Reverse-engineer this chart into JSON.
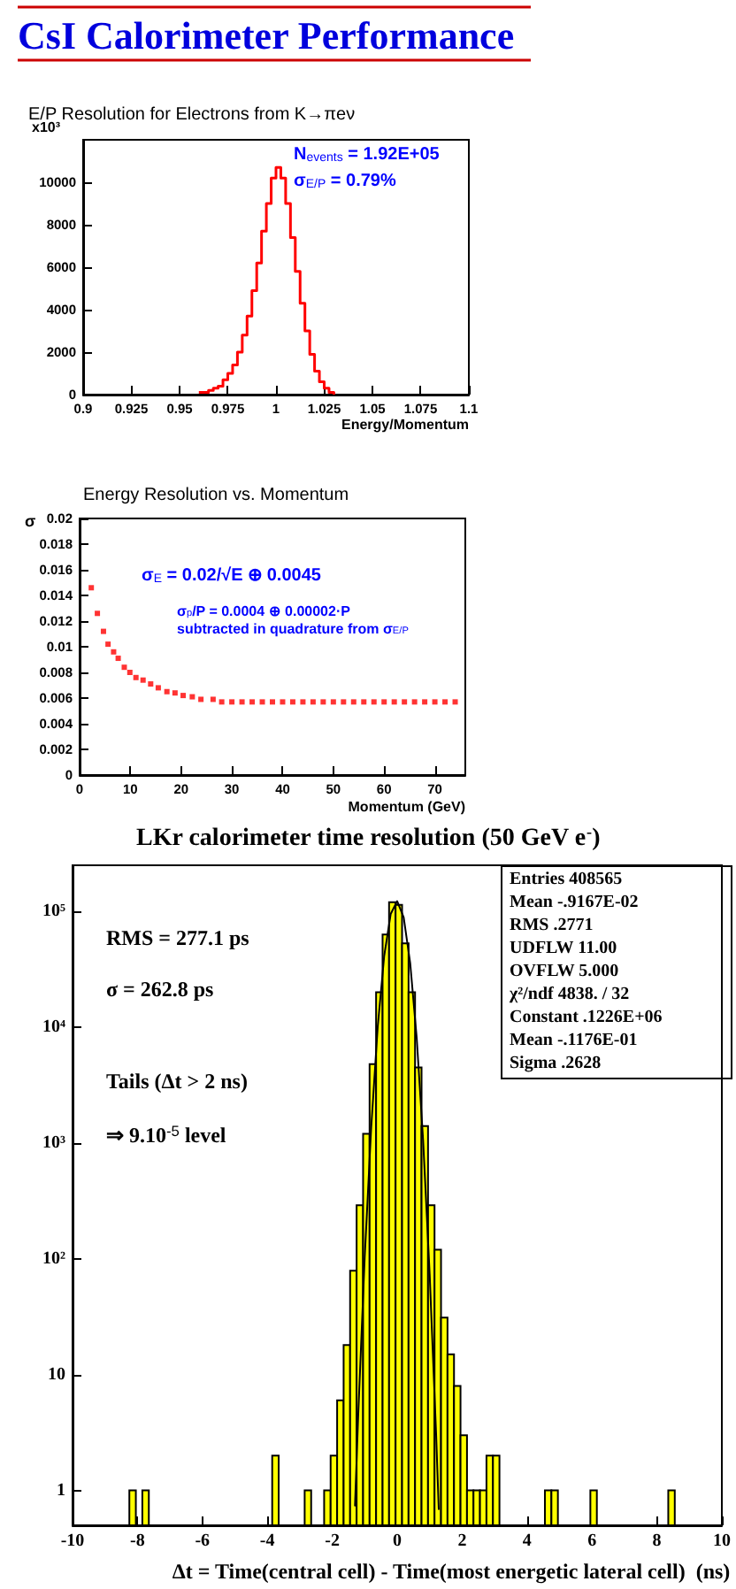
{
  "chart_data": [
    {
      "type": "step",
      "title": "CsI Calorimeter Performance",
      "subtitle": "E/P Resolution for Electrons from K→πeν",
      "xlabel": "Energy/Momentum",
      "annotations": [
        "x10³",
        "N$_{events}$ = 1.92E+05",
        "σ$_{E/P}$ = 0.79%"
      ],
      "x": [
        0.96,
        0.9625,
        0.965,
        0.9675,
        0.97,
        0.9725,
        0.975,
        0.9775,
        0.98,
        0.9825,
        0.985,
        0.9875,
        0.99,
        0.9925,
        0.995,
        0.9975,
        1.0,
        1.0025,
        1.005,
        1.0075,
        1.01,
        1.0125,
        1.015,
        1.0175,
        1.02,
        1.0225,
        1.025,
        1.0275,
        1.03
      ],
      "values": [
        100,
        100,
        200,
        300,
        400,
        700,
        1000,
        1400,
        2000,
        2800,
        3700,
        4900,
        6200,
        7700,
        9000,
        10200,
        10700,
        10200,
        9000,
        7400,
        5800,
        4300,
        3000,
        1900,
        1100,
        600,
        300,
        100,
        0
      ],
      "color": "#ff0000",
      "xlim": [
        0.9,
        1.1
      ],
      "ylim": [
        0,
        12000
      ],
      "xticks": [
        0.9,
        0.925,
        0.95,
        0.975,
        1,
        1.025,
        1.05,
        1.075,
        1.1
      ],
      "yticks": [
        0,
        2000,
        4000,
        6000,
        8000,
        10000
      ],
      "grid": false
    },
    {
      "type": "scatter",
      "title": "Energy Resolution vs. Momentum",
      "xlabel": "Momentum (GeV)",
      "ylabel": "σ",
      "annotations": [
        "σ$_{E}$ = 0.02/√E ⊕ 0.0045",
        "σ$_{p}$/P = 0.0004 ⊕ 0.00002·P",
        "subtracted in quadrature from σ$_{E/P}$"
      ],
      "x": [
        2.3,
        3.5,
        4.7,
        5.6,
        6.7,
        7.6,
        8.8,
        9.9,
        11.1,
        12.5,
        14,
        15.5,
        17.2,
        18.8,
        20.4,
        22.2,
        23.9,
        26.3,
        28,
        30,
        32,
        34,
        36,
        38,
        40,
        42,
        44,
        46,
        48,
        50,
        52,
        54,
        56,
        58,
        60,
        62,
        64,
        66,
        68,
        70,
        72,
        74
      ],
      "values": [
        0.0146,
        0.0126,
        0.0112,
        0.0102,
        0.0096,
        0.0091,
        0.0084,
        0.008,
        0.0076,
        0.0074,
        0.0071,
        0.0068,
        0.0065,
        0.0064,
        0.0062,
        0.0061,
        0.0059,
        0.0059,
        0.0057,
        0.0057,
        0.0057,
        0.0057,
        0.0057,
        0.0057,
        0.0057,
        0.0057,
        0.0057,
        0.0057,
        0.0057,
        0.0057,
        0.0057,
        0.0057,
        0.0057,
        0.0057,
        0.0057,
        0.0057,
        0.0057,
        0.0057,
        0.0057,
        0.0057,
        0.0057,
        0.0057
      ],
      "color": "#ff0000",
      "marker": "square",
      "xlim": [
        0,
        76
      ],
      "ylim": [
        0,
        0.02
      ],
      "xticks": [
        0,
        10,
        20,
        30,
        40,
        50,
        60,
        70
      ],
      "yticks": [
        0,
        0.002,
        0.004,
        0.006,
        0.008,
        0.01,
        0.012,
        0.014,
        0.016,
        0.018,
        0.02
      ],
      "grid": false
    },
    {
      "type": "histogram",
      "title": "LKr calorimeter time resolution (50 GeV e$^{-}$)",
      "xlabel": "Δt = Time(central cell) - Time(most energetic lateral cell)  (ns)",
      "annotations": [
        "RMS = 277.1 ps",
        "σ = 262.8 ps",
        "Tails (Δt > 2 ns)",
        "⇒ 9.10$^{-5}$ level",
        "Entries 408565",
        "Mean -.9167E-02",
        "RMS .2771",
        "UDFLW 11.00",
        "OVFLW 5.000",
        "χ²/ndf 4838. / 32",
        "Constant .1226E+06",
        "Mean -.1176E-01",
        "Sigma .2628"
      ],
      "bins": [
        -8.25,
        -8.05,
        -7.85,
        -7.65,
        -7.45,
        -7.25,
        -7.05,
        -6.85,
        -6.65,
        -6.45,
        -6.25,
        -6.05,
        -5.85,
        -5.65,
        -5.45,
        -5.25,
        -5.05,
        -4.85,
        -4.65,
        -4.45,
        -4.25,
        -4.05,
        -3.85,
        -3.65,
        -3.45,
        -3.25,
        -3.05,
        -2.85,
        -2.65,
        -2.45,
        -2.25,
        -2.05,
        -1.85,
        -1.65,
        -1.45,
        -1.25,
        -1.05,
        -0.85,
        -0.65,
        -0.45,
        -0.25,
        -0.05,
        0.15,
        0.35,
        0.55,
        0.75,
        0.95,
        1.15,
        1.35,
        1.55,
        1.75,
        1.95,
        2.15,
        2.35,
        2.55,
        2.75,
        2.95,
        3.15,
        3.35,
        3.55,
        3.75,
        3.95,
        4.15,
        4.35,
        4.55,
        4.75,
        4.95,
        5.15,
        5.35,
        5.55,
        5.75,
        5.95,
        6.15,
        6.35,
        6.55,
        6.75,
        6.95,
        7.15,
        7.35,
        7.55,
        7.75,
        7.95,
        8.15,
        8.35,
        8.55
      ],
      "series": [
        {
          "color": "#ffff00",
          "values": [
            1,
            null,
            1,
            null,
            null,
            null,
            null,
            null,
            null,
            null,
            null,
            null,
            null,
            null,
            null,
            null,
            null,
            null,
            null,
            null,
            null,
            null,
            2,
            null,
            null,
            null,
            null,
            1,
            null,
            null,
            1,
            2,
            6,
            18,
            79,
            290,
            1200,
            4800,
            20000,
            63000,
            120000,
            114000,
            53000,
            20000,
            4500,
            1400,
            290,
            120,
            31,
            15,
            8,
            3,
            1,
            1,
            1,
            2,
            2,
            null,
            null,
            null,
            null,
            null,
            null,
            null,
            1,
            1,
            null,
            null,
            null,
            null,
            null,
            1,
            null,
            null,
            null,
            null,
            null,
            null,
            null,
            null,
            null,
            null,
            null,
            1
          ]
        },
        {
          "type": "line",
          "color": "#000000",
          "x": [
            -1.3,
            -1.2,
            -1.0,
            -0.8,
            -0.6,
            -0.4,
            -0.2,
            0,
            0.2,
            0.4,
            0.6,
            0.8,
            1.0,
            1.2,
            1.28
          ],
          "values": [
            0.74,
            4.5,
            104,
            1366,
            10030,
            41200,
            94900,
            122500,
            88600,
            35900,
            8160,
            1040,
            74,
            3,
            0.69
          ]
        }
      ],
      "log": "y",
      "xlim": [
        -10,
        10
      ],
      "ylim": [
        0.5,
        250000
      ],
      "xticks": [
        -10,
        -8,
        -6,
        -4,
        -2,
        0,
        2,
        4,
        6,
        8,
        10
      ],
      "yticks": [
        1,
        10,
        {
          "value": 100,
          "label": "10²"
        },
        {
          "value": 1000,
          "label": "10³"
        },
        {
          "value": 10000,
          "label": "10⁴"
        },
        {
          "value": 100000,
          "label": "10⁵"
        }
      ],
      "grid": false
    }
  ]
}
